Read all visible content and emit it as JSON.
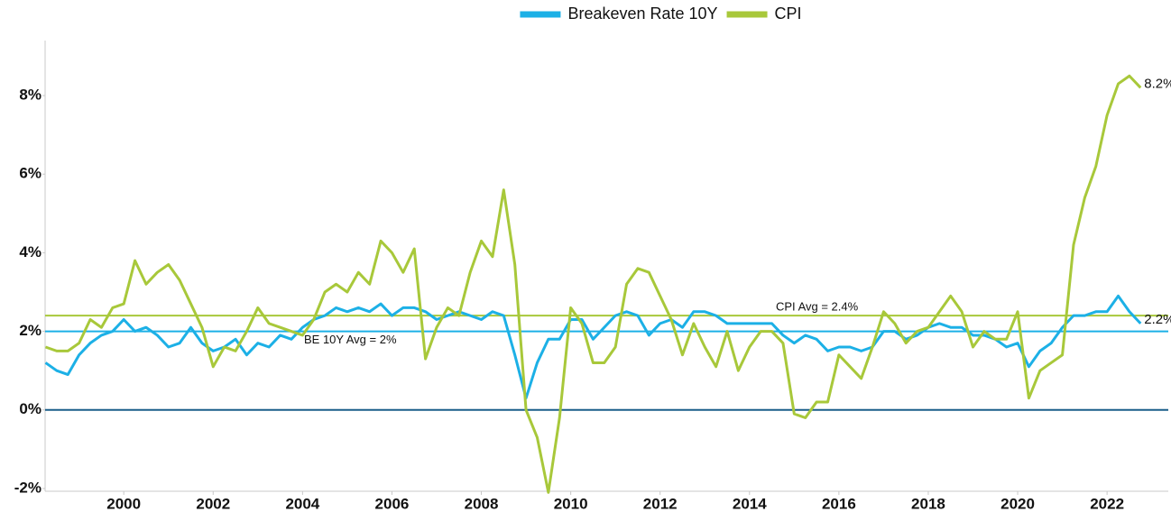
{
  "chart_data": {
    "type": "line",
    "x": [
      1998.25,
      1998.5,
      1998.75,
      1999,
      1999.25,
      1999.5,
      1999.75,
      2000,
      2000.25,
      2000.5,
      2000.75,
      2001,
      2001.25,
      2001.5,
      2001.75,
      2002,
      2002.25,
      2002.5,
      2002.75,
      2003,
      2003.25,
      2003.5,
      2003.75,
      2004,
      2004.25,
      2004.5,
      2004.75,
      2005,
      2005.25,
      2005.5,
      2005.75,
      2006,
      2006.25,
      2006.5,
      2006.75,
      2007,
      2007.25,
      2007.5,
      2007.75,
      2008,
      2008.25,
      2008.5,
      2008.75,
      2009,
      2009.25,
      2009.5,
      2009.75,
      2010,
      2010.25,
      2010.5,
      2010.75,
      2011,
      2011.25,
      2011.5,
      2011.75,
      2012,
      2012.25,
      2012.5,
      2012.75,
      2013,
      2013.25,
      2013.5,
      2013.75,
      2014,
      2014.25,
      2014.5,
      2014.75,
      2015,
      2015.25,
      2015.5,
      2015.75,
      2016,
      2016.25,
      2016.5,
      2016.75,
      2017,
      2017.25,
      2017.5,
      2017.75,
      2018,
      2018.25,
      2018.5,
      2018.75,
      2019,
      2019.25,
      2019.5,
      2019.75,
      2020,
      2020.25,
      2020.5,
      2020.75,
      2021,
      2021.25,
      2021.5,
      2021.75,
      2022,
      2022.25,
      2022.5,
      2022.75
    ],
    "series": [
      {
        "name": "Breakeven Rate 10Y",
        "color": "#1cb0e6",
        "end_label": "2.2%",
        "values": [
          1.2,
          1.0,
          0.9,
          1.4,
          1.7,
          1.9,
          2.0,
          2.3,
          2.0,
          2.1,
          1.9,
          1.6,
          1.7,
          2.1,
          1.7,
          1.5,
          1.6,
          1.8,
          1.4,
          1.7,
          1.6,
          1.9,
          1.8,
          2.1,
          2.3,
          2.4,
          2.6,
          2.5,
          2.6,
          2.5,
          2.7,
          2.4,
          2.6,
          2.6,
          2.5,
          2.3,
          2.4,
          2.5,
          2.4,
          2.3,
          2.5,
          2.4,
          1.4,
          0.3,
          1.2,
          1.8,
          1.8,
          2.3,
          2.3,
          1.8,
          2.1,
          2.4,
          2.5,
          2.4,
          1.9,
          2.2,
          2.3,
          2.1,
          2.5,
          2.5,
          2.4,
          2.2,
          2.2,
          2.2,
          2.2,
          2.2,
          1.9,
          1.7,
          1.9,
          1.8,
          1.5,
          1.6,
          1.6,
          1.5,
          1.6,
          2.0,
          2.0,
          1.8,
          1.9,
          2.1,
          2.2,
          2.1,
          2.1,
          1.9,
          1.9,
          1.8,
          1.6,
          1.7,
          1.1,
          1.5,
          1.7,
          2.1,
          2.4,
          2.4,
          2.5,
          2.5,
          2.9,
          2.5,
          2.2
        ]
      },
      {
        "name": "CPI",
        "color": "#a8c83a",
        "end_label": "8.2%",
        "values": [
          1.6,
          1.5,
          1.5,
          1.7,
          2.3,
          2.1,
          2.6,
          2.7,
          3.8,
          3.2,
          3.5,
          3.7,
          3.3,
          2.7,
          2.1,
          1.1,
          1.6,
          1.5,
          2.0,
          2.6,
          2.2,
          2.1,
          2.0,
          1.9,
          2.3,
          3.0,
          3.2,
          3.0,
          3.5,
          3.2,
          4.3,
          4.0,
          3.5,
          4.1,
          1.3,
          2.1,
          2.6,
          2.4,
          3.5,
          4.3,
          3.9,
          5.6,
          3.7,
          0.0,
          -0.7,
          -2.1,
          -0.2,
          2.6,
          2.2,
          1.2,
          1.2,
          1.6,
          3.2,
          3.6,
          3.5,
          2.9,
          2.3,
          1.4,
          2.2,
          1.6,
          1.1,
          2.0,
          1.0,
          1.6,
          2.0,
          2.0,
          1.7,
          -0.1,
          -0.2,
          0.2,
          0.2,
          1.4,
          1.1,
          0.8,
          1.6,
          2.5,
          2.2,
          1.7,
          2.0,
          2.1,
          2.5,
          2.9,
          2.5,
          1.6,
          2.0,
          1.8,
          1.8,
          2.5,
          0.3,
          1.0,
          1.2,
          1.4,
          4.2,
          5.4,
          6.2,
          7.5,
          8.3,
          8.5,
          8.2
        ]
      }
    ],
    "reference_lines": [
      {
        "value": 2,
        "label": "BE 10Y Avg = 2%",
        "color": "#1cb0e6"
      },
      {
        "value": 2.4,
        "label": "CPI Avg = 2.4%",
        "color": "#a8c83a"
      }
    ],
    "zero_line_color": "#1a5e8a",
    "xlim": [
      1998.24,
      2023.37
    ],
    "xticks": [
      2000,
      2002,
      2004,
      2006,
      2008,
      2010,
      2012,
      2014,
      2016,
      2018,
      2020,
      2022
    ],
    "ylim": [
      -2.07,
      9.4
    ],
    "yticks": [
      {
        "value": -2,
        "label": "-2%"
      },
      {
        "value": 0,
        "label": "0%"
      },
      {
        "value": 2,
        "label": "2%"
      },
      {
        "value": 4,
        "label": "4%"
      },
      {
        "value": 6,
        "label": "6%"
      },
      {
        "value": 8,
        "label": "8%"
      }
    ],
    "legend": "top"
  }
}
